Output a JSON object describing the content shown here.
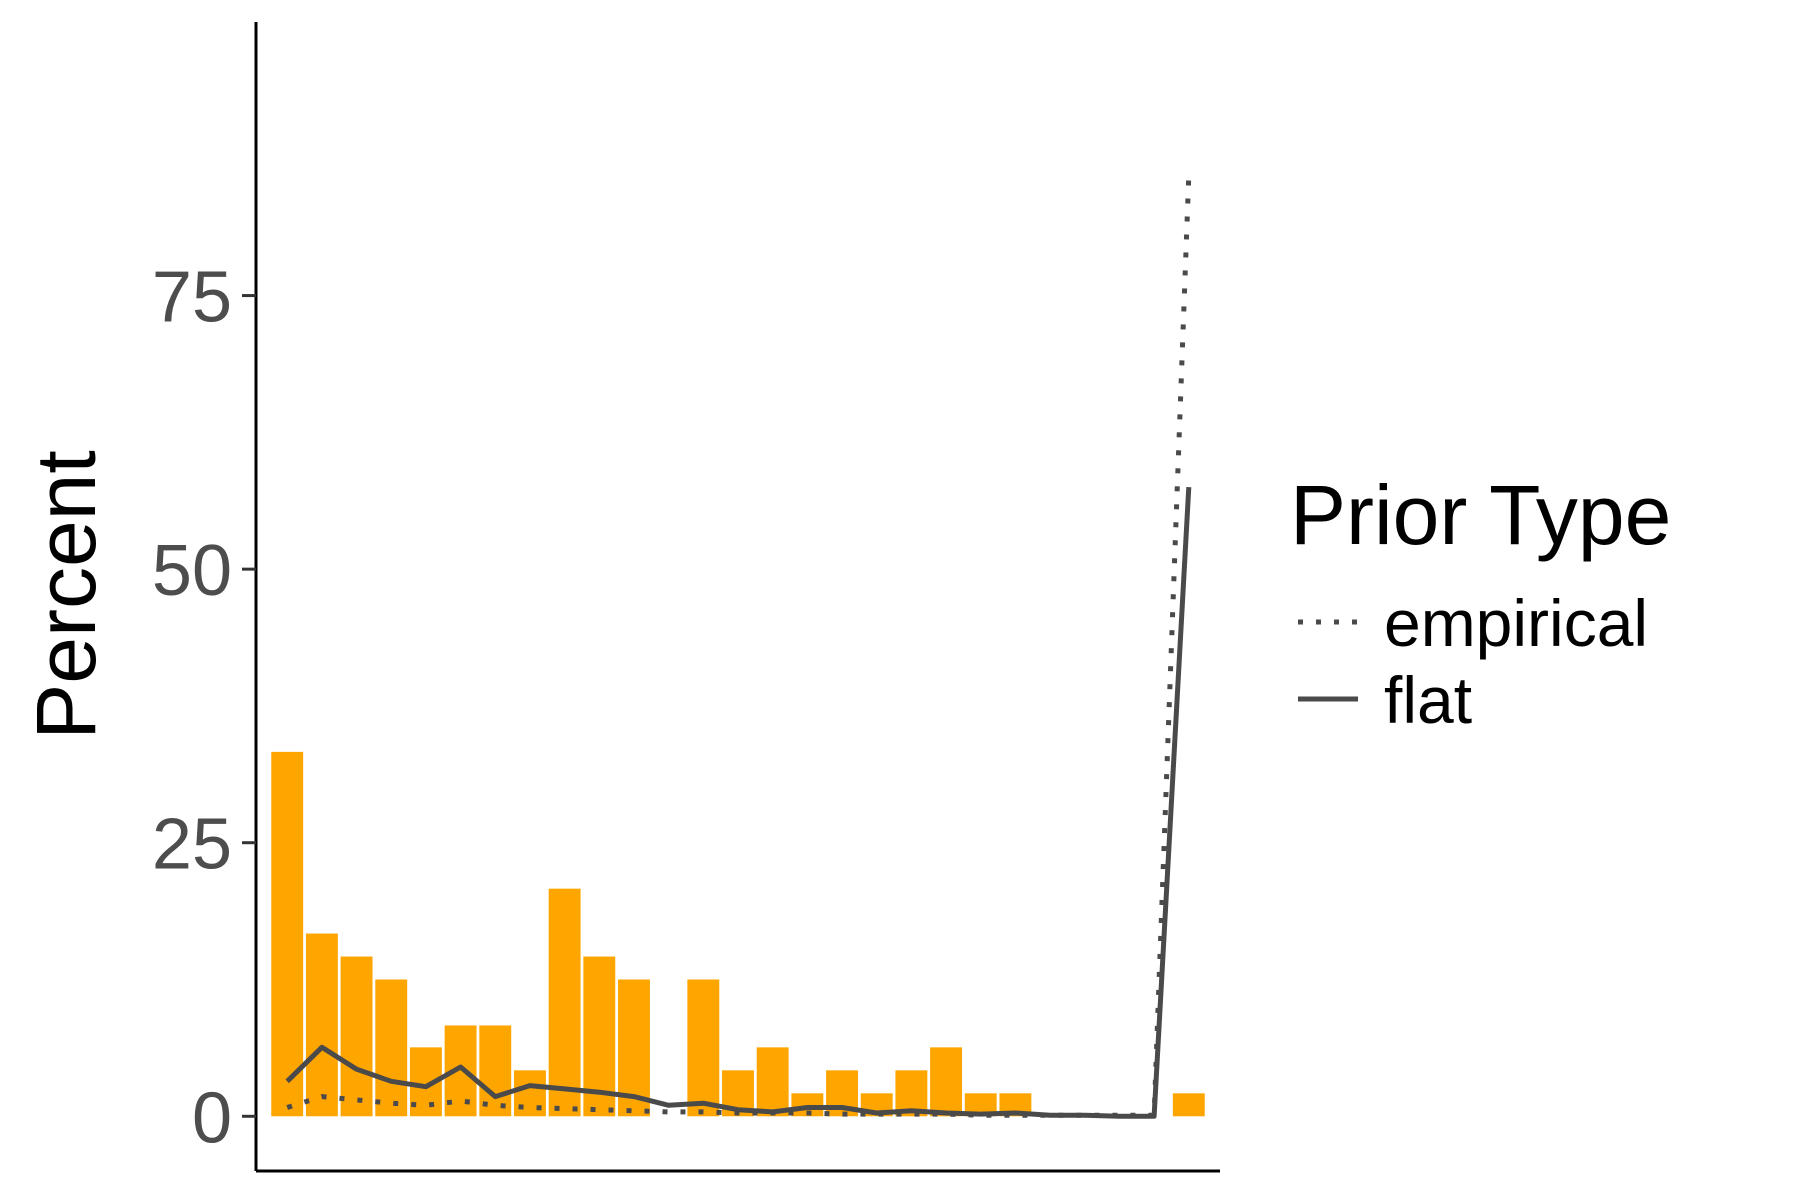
{
  "chart_data": {
    "type": "bar",
    "title": "",
    "xlabel": "",
    "ylabel": "Percent",
    "ylim": [
      -5,
      100
    ],
    "yticks": [
      0,
      25,
      50,
      75
    ],
    "grid": false,
    "legend_position": "right",
    "bar_color": "#FFA500",
    "line_color": "#4a4a4a",
    "bars": [
      {
        "x": 1,
        "value": 33.3
      },
      {
        "x": 2,
        "value": 16.7
      },
      {
        "x": 3,
        "value": 14.6
      },
      {
        "x": 4,
        "value": 12.5
      },
      {
        "x": 5,
        "value": 6.3
      },
      {
        "x": 6,
        "value": 8.3
      },
      {
        "x": 7,
        "value": 8.3
      },
      {
        "x": 8,
        "value": 4.2
      },
      {
        "x": 9,
        "value": 20.8
      },
      {
        "x": 10,
        "value": 14.6
      },
      {
        "x": 11,
        "value": 12.5
      },
      {
        "x": 13,
        "value": 12.5
      },
      {
        "x": 14,
        "value": 4.2
      },
      {
        "x": 15,
        "value": 6.3
      },
      {
        "x": 16,
        "value": 2.1
      },
      {
        "x": 17,
        "value": 4.2
      },
      {
        "x": 18,
        "value": 2.1
      },
      {
        "x": 19,
        "value": 4.2
      },
      {
        "x": 20,
        "value": 6.3
      },
      {
        "x": 21,
        "value": 2.1
      },
      {
        "x": 22,
        "value": 2.1
      },
      {
        "x": 27,
        "value": 2.1
      }
    ],
    "legend": {
      "title": "Prior Type",
      "entries": [
        {
          "label": "empirical",
          "linetype": "dotted"
        },
        {
          "label": "flat",
          "linetype": "solid"
        }
      ]
    },
    "series": [
      {
        "name": "empirical",
        "linetype": "dotted",
        "points": [
          [
            1,
            0.8
          ],
          [
            2,
            1.8
          ],
          [
            3,
            1.5
          ],
          [
            4,
            1.2
          ],
          [
            5,
            1.0
          ],
          [
            6,
            1.4
          ],
          [
            7,
            1.0
          ],
          [
            8,
            0.8
          ],
          [
            9,
            0.7
          ],
          [
            10,
            0.6
          ],
          [
            11,
            0.5
          ],
          [
            12,
            0.4
          ],
          [
            13,
            0.4
          ],
          [
            14,
            0.3
          ],
          [
            15,
            0.3
          ],
          [
            16,
            0.3
          ],
          [
            17,
            0.2
          ],
          [
            18,
            0.2
          ],
          [
            19,
            0.2
          ],
          [
            20,
            0.2
          ],
          [
            21,
            0.1
          ],
          [
            22,
            0.1
          ],
          [
            23,
            0.1
          ],
          [
            24,
            0.1
          ],
          [
            25,
            0.1
          ],
          [
            26,
            0.1
          ],
          [
            27,
            86
          ]
        ]
      },
      {
        "name": "flat",
        "linetype": "solid",
        "points": [
          [
            1,
            3.2
          ],
          [
            2,
            6.3
          ],
          [
            3,
            4.3
          ],
          [
            4,
            3.2
          ],
          [
            5,
            2.7
          ],
          [
            6,
            4.5
          ],
          [
            7,
            1.8
          ],
          [
            8,
            2.8
          ],
          [
            9,
            2.5
          ],
          [
            10,
            2.2
          ],
          [
            11,
            1.8
          ],
          [
            12,
            1.0
          ],
          [
            13,
            1.2
          ],
          [
            14,
            0.6
          ],
          [
            15,
            0.4
          ],
          [
            16,
            0.8
          ],
          [
            17,
            0.8
          ],
          [
            18,
            0.3
          ],
          [
            19,
            0.5
          ],
          [
            20,
            0.3
          ],
          [
            21,
            0.2
          ],
          [
            22,
            0.3
          ],
          [
            23,
            0.1
          ],
          [
            24,
            0.1
          ],
          [
            25,
            0.0
          ],
          [
            26,
            0.0
          ],
          [
            27,
            57.5
          ]
        ]
      }
    ]
  }
}
